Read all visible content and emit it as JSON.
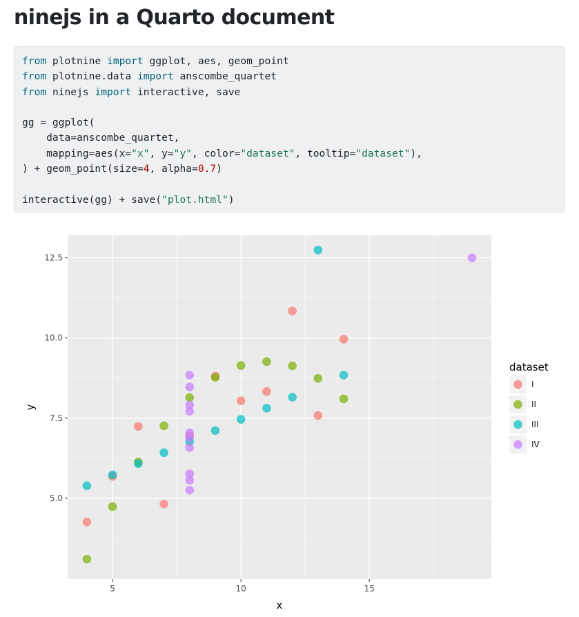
{
  "page": {
    "title": "ninejs in a Quarto document"
  },
  "code": {
    "lines": [
      [
        {
          "t": "from",
          "c": "kw"
        },
        {
          "t": " plotnine "
        },
        {
          "t": "import",
          "c": "kw"
        },
        {
          "t": " ggplot, aes, geom_point"
        }
      ],
      [
        {
          "t": "from",
          "c": "kw"
        },
        {
          "t": " plotnine.data "
        },
        {
          "t": "import",
          "c": "kw"
        },
        {
          "t": " anscombe_quartet"
        }
      ],
      [
        {
          "t": "from",
          "c": "kw"
        },
        {
          "t": " ninejs "
        },
        {
          "t": "import",
          "c": "kw"
        },
        {
          "t": " interactive, save"
        }
      ],
      [],
      [
        {
          "t": "gg = ggplot("
        }
      ],
      [
        {
          "t": "    data=anscombe_quartet,"
        }
      ],
      [
        {
          "t": "    mapping=aes(x="
        },
        {
          "t": "\"x\"",
          "c": "str"
        },
        {
          "t": ", y="
        },
        {
          "t": "\"y\"",
          "c": "str"
        },
        {
          "t": ", color="
        },
        {
          "t": "\"dataset\"",
          "c": "str"
        },
        {
          "t": ", tooltip="
        },
        {
          "t": "\"dataset\"",
          "c": "str"
        },
        {
          "t": "),"
        }
      ],
      [
        {
          "t": ") + geom_point(size="
        },
        {
          "t": "4",
          "c": "num"
        },
        {
          "t": ", alpha="
        },
        {
          "t": "0.7",
          "c": "num"
        },
        {
          "t": ")"
        }
      ],
      [],
      [
        {
          "t": "interactive(gg) + save("
        },
        {
          "t": "\"plot.html\"",
          "c": "str"
        },
        {
          "t": ")"
        }
      ]
    ]
  },
  "chart_data": {
    "type": "scatter",
    "title": "",
    "xlabel": "x",
    "ylabel": "y",
    "xlim": [
      3.25,
      19.75
    ],
    "ylim": [
      2.48,
      13.2
    ],
    "xticks": [
      5,
      10,
      15
    ],
    "xtick_labels": [
      "5",
      "10",
      "15"
    ],
    "yticks": [
      5.0,
      7.5,
      10.0,
      12.5
    ],
    "ytick_labels": [
      "5.0",
      "7.5",
      "10.0",
      "12.5"
    ],
    "grid": true,
    "legend": {
      "title": "dataset",
      "placement": "right"
    },
    "point_alpha": 0.7,
    "series": [
      {
        "name": "I",
        "color": "#F8766D",
        "x": [
          10,
          8,
          13,
          9,
          11,
          14,
          6,
          4,
          12,
          7,
          5
        ],
        "y": [
          8.04,
          6.95,
          7.58,
          8.81,
          8.33,
          9.96,
          7.24,
          4.26,
          10.84,
          4.82,
          5.68
        ]
      },
      {
        "name": "II",
        "color": "#7CAE00",
        "x": [
          10,
          8,
          13,
          9,
          11,
          14,
          6,
          4,
          12,
          7,
          5
        ],
        "y": [
          9.14,
          8.14,
          8.74,
          8.77,
          9.26,
          8.1,
          6.13,
          3.1,
          9.13,
          7.26,
          4.74
        ]
      },
      {
        "name": "III",
        "color": "#00BFC4",
        "x": [
          10,
          8,
          13,
          9,
          11,
          14,
          6,
          4,
          12,
          7,
          5
        ],
        "y": [
          7.46,
          6.77,
          12.74,
          7.11,
          7.81,
          8.84,
          6.08,
          5.39,
          8.15,
          6.42,
          5.73
        ]
      },
      {
        "name": "IV",
        "color": "#C77CFF",
        "x": [
          8,
          8,
          8,
          8,
          8,
          8,
          8,
          19,
          8,
          8,
          8
        ],
        "y": [
          6.58,
          5.76,
          7.71,
          8.84,
          8.47,
          7.04,
          5.25,
          12.5,
          5.56,
          7.91,
          6.89
        ]
      }
    ]
  }
}
